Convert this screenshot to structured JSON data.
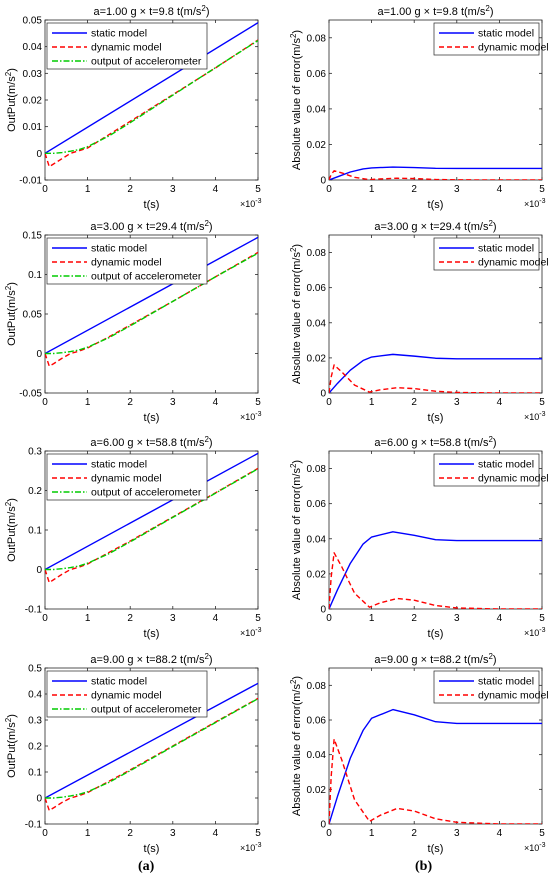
{
  "figure": {
    "panel_labels": [
      "(a)",
      "(b)"
    ]
  },
  "colors": {
    "static": "#0000ff",
    "dynamic": "#ff0000",
    "accel": "#00cc00"
  },
  "chart_data": [
    {
      "id": "a1",
      "type": "line",
      "title": {
        "main": "a=1.00 g × t=9.8 t(m/s",
        "sup": "2",
        "close": ")"
      },
      "xlabel": "t(s)",
      "x_exponent": "×10",
      "x_exponent_power": "-3",
      "ylabel": {
        "main": "OutPut(m/s",
        "sup": "2",
        "close": ")"
      },
      "xlim": [
        0,
        5
      ],
      "ylim": [
        -0.01,
        0.05
      ],
      "xticks": [
        "0",
        "1",
        "2",
        "3",
        "4",
        "5"
      ],
      "yticks": [
        "-0.01",
        "0",
        "0.01",
        "0.02",
        "0.03",
        "0.04",
        "0.05"
      ],
      "legend": {
        "placement": "top-left",
        "entries": [
          "static model",
          "dynamic model",
          "output of accelerometer"
        ]
      },
      "series": [
        {
          "name": "static model",
          "style": "solid",
          "color_key": "static",
          "x": [
            0,
            5
          ],
          "y": [
            0,
            0.049
          ]
        },
        {
          "name": "dynamic model",
          "style": "dashed",
          "color_key": "dynamic",
          "x": [
            0,
            0.1,
            0.2,
            0.4,
            0.6,
            0.8,
            1.0,
            1.5,
            2,
            3,
            4,
            5
          ],
          "y": [
            0,
            -0.005,
            -0.004,
            -0.002,
            0,
            0.001,
            0.002,
            0.007,
            0.012,
            0.022,
            0.032,
            0.0425
          ]
        },
        {
          "name": "output of accelerometer",
          "style": "dashdot",
          "color_key": "accel",
          "x": [
            0,
            0.2,
            0.4,
            0.6,
            0.8,
            1.0,
            1.5,
            2,
            3,
            4,
            5
          ],
          "y": [
            0,
            0,
            0.0003,
            0.0008,
            0.0014,
            0.0025,
            0.0065,
            0.0115,
            0.0218,
            0.0321,
            0.0423
          ]
        }
      ]
    },
    {
      "id": "b1",
      "type": "line",
      "title": {
        "main": "a=1.00 g × t=9.8 t(m/s",
        "sup": "2",
        "close": ")"
      },
      "xlabel": "t(s)",
      "x_exponent": "×10",
      "x_exponent_power": "-3",
      "ylabel": {
        "main": "Absolute value of error(m/s",
        "sup": "2",
        "close": ")"
      },
      "xlim": [
        0,
        5
      ],
      "ylim": [
        0,
        0.09
      ],
      "xticks": [
        "0",
        "1",
        "2",
        "3",
        "4",
        "5"
      ],
      "yticks": [
        "0",
        "0.02",
        "0.04",
        "0.06",
        "0.08"
      ],
      "legend": {
        "placement": "top-right",
        "entries": [
          "static model",
          "dynamic model"
        ]
      },
      "series": [
        {
          "name": "static model",
          "style": "solid",
          "color_key": "static",
          "x": [
            0,
            0.2,
            0.5,
            0.8,
            1.0,
            1.5,
            2.0,
            2.5,
            3.0,
            4.0,
            5.0
          ],
          "y": [
            0,
            0.0018,
            0.0045,
            0.0062,
            0.0068,
            0.0073,
            0.007,
            0.0066,
            0.0065,
            0.0065,
            0.0065
          ]
        },
        {
          "name": "dynamic model",
          "style": "dashed",
          "color_key": "dynamic",
          "x": [
            0,
            0.05,
            0.12,
            0.3,
            0.6,
            0.95,
            1.2,
            1.6,
            2.0,
            2.5,
            3,
            4,
            5
          ],
          "y": [
            0,
            0.003,
            0.0052,
            0.004,
            0.0015,
            0.0002,
            0.0006,
            0.001,
            0.0008,
            0.0003,
            0.0001,
            0,
            0
          ]
        }
      ]
    },
    {
      "id": "a2",
      "type": "line",
      "title": {
        "main": "a=3.00 g × t=29.4 t(m/s",
        "sup": "2",
        "close": ")"
      },
      "xlabel": "t(s)",
      "x_exponent": "×10",
      "x_exponent_power": "-3",
      "ylabel": {
        "main": "OutPut(m/s",
        "sup": "2",
        "close": ")"
      },
      "xlim": [
        0,
        5
      ],
      "ylim": [
        -0.05,
        0.15
      ],
      "xticks": [
        "0",
        "1",
        "2",
        "3",
        "4",
        "5"
      ],
      "yticks": [
        "-0.05",
        "0",
        "0.05",
        "0.1",
        "0.15"
      ],
      "legend": {
        "placement": "top-left",
        "entries": [
          "static model",
          "dynamic model",
          "output of accelerometer"
        ]
      },
      "series": [
        {
          "name": "static model",
          "style": "solid",
          "color_key": "static",
          "x": [
            0,
            5
          ],
          "y": [
            0,
            0.147
          ]
        },
        {
          "name": "dynamic model",
          "style": "dashed",
          "color_key": "dynamic",
          "x": [
            0,
            0.1,
            0.2,
            0.4,
            0.6,
            0.8,
            1.0,
            1.5,
            2,
            3,
            4,
            5
          ],
          "y": [
            0,
            -0.016,
            -0.013,
            -0.006,
            0,
            0.003,
            0.007,
            0.021,
            0.036,
            0.066,
            0.097,
            0.128
          ]
        },
        {
          "name": "output of accelerometer",
          "style": "dashdot",
          "color_key": "accel",
          "x": [
            0,
            0.2,
            0.4,
            0.6,
            0.8,
            1.0,
            1.5,
            2,
            3,
            4,
            5
          ],
          "y": [
            0,
            0,
            0.001,
            0.0025,
            0.0045,
            0.008,
            0.02,
            0.035,
            0.066,
            0.097,
            0.127
          ]
        }
      ]
    },
    {
      "id": "b2",
      "type": "line",
      "title": {
        "main": "a=3.00 g × t=29.4 t(m/s",
        "sup": "2",
        "close": ")"
      },
      "xlabel": "t(s)",
      "x_exponent": "×10",
      "x_exponent_power": "-3",
      "ylabel": {
        "main": "Absolute value of error(m/s",
        "sup": "2",
        "close": ")"
      },
      "xlim": [
        0,
        5
      ],
      "ylim": [
        0,
        0.09
      ],
      "xticks": [
        "0",
        "1",
        "2",
        "3",
        "4",
        "5"
      ],
      "yticks": [
        "0",
        "0.02",
        "0.04",
        "0.06",
        "0.08"
      ],
      "legend": {
        "placement": "top-right",
        "entries": [
          "static model",
          "dynamic model"
        ]
      },
      "series": [
        {
          "name": "static model",
          "style": "solid",
          "color_key": "static",
          "x": [
            0,
            0.2,
            0.5,
            0.8,
            1.0,
            1.5,
            2.0,
            2.5,
            3.0,
            4.0,
            5.0
          ],
          "y": [
            0,
            0.0055,
            0.013,
            0.0185,
            0.0205,
            0.022,
            0.021,
            0.0198,
            0.0195,
            0.0195,
            0.0195
          ]
        },
        {
          "name": "dynamic model",
          "style": "dashed",
          "color_key": "dynamic",
          "x": [
            0,
            0.05,
            0.12,
            0.3,
            0.6,
            0.95,
            1.2,
            1.6,
            2.0,
            2.5,
            3,
            4,
            5
          ],
          "y": [
            0,
            0.009,
            0.016,
            0.012,
            0.0045,
            0.0005,
            0.0018,
            0.003,
            0.0025,
            0.001,
            0.0003,
            0,
            0
          ]
        }
      ]
    },
    {
      "id": "a3",
      "type": "line",
      "title": {
        "main": "a=6.00 g × t=58.8 t(m/s",
        "sup": "2",
        "close": ")"
      },
      "xlabel": "t(s)",
      "x_exponent": "×10",
      "x_exponent_power": "-3",
      "ylabel": {
        "main": "OutPut(m/s",
        "sup": "2",
        "close": ")"
      },
      "xlim": [
        0,
        5
      ],
      "ylim": [
        -0.1,
        0.3
      ],
      "xticks": [
        "0",
        "1",
        "2",
        "3",
        "4",
        "5"
      ],
      "yticks": [
        "-0.1",
        "0",
        "0.1",
        "0.2",
        "0.3"
      ],
      "legend": {
        "placement": "top-left",
        "entries": [
          "static model",
          "dynamic model",
          "output of accelerometer"
        ]
      },
      "series": [
        {
          "name": "static model",
          "style": "solid",
          "color_key": "static",
          "x": [
            0,
            5
          ],
          "y": [
            0,
            0.294
          ]
        },
        {
          "name": "dynamic model",
          "style": "dashed",
          "color_key": "dynamic",
          "x": [
            0,
            0.1,
            0.2,
            0.4,
            0.6,
            0.8,
            1.0,
            1.5,
            2,
            3,
            4,
            5
          ],
          "y": [
            0,
            -0.033,
            -0.026,
            -0.012,
            0,
            0.006,
            0.014,
            0.043,
            0.072,
            0.133,
            0.194,
            0.256
          ]
        },
        {
          "name": "output of accelerometer",
          "style": "dashdot",
          "color_key": "accel",
          "x": [
            0,
            0.2,
            0.4,
            0.6,
            0.8,
            1.0,
            1.5,
            2,
            3,
            4,
            5
          ],
          "y": [
            0,
            0,
            0.002,
            0.005,
            0.009,
            0.016,
            0.04,
            0.07,
            0.132,
            0.193,
            0.255
          ]
        }
      ]
    },
    {
      "id": "b3",
      "type": "line",
      "title": {
        "main": "a=6.00 g × t=58.8 t(m/s",
        "sup": "2",
        "close": ")"
      },
      "xlabel": "t(s)",
      "x_exponent": "×10",
      "x_exponent_power": "-3",
      "ylabel": {
        "main": "Absolute value of error(m/s",
        "sup": "2",
        "close": ")"
      },
      "xlim": [
        0,
        5
      ],
      "ylim": [
        0,
        0.09
      ],
      "xticks": [
        "0",
        "1",
        "2",
        "3",
        "4",
        "5"
      ],
      "yticks": [
        "0",
        "0.02",
        "0.04",
        "0.06",
        "0.08"
      ],
      "legend": {
        "placement": "top-right",
        "entries": [
          "static model",
          "dynamic model"
        ]
      },
      "series": [
        {
          "name": "static model",
          "style": "solid",
          "color_key": "static",
          "x": [
            0,
            0.2,
            0.5,
            0.8,
            1.0,
            1.5,
            2.0,
            2.5,
            3.0,
            4.0,
            5.0
          ],
          "y": [
            0,
            0.011,
            0.026,
            0.037,
            0.041,
            0.044,
            0.042,
            0.0395,
            0.039,
            0.039,
            0.039
          ]
        },
        {
          "name": "dynamic model",
          "style": "dashed",
          "color_key": "dynamic",
          "x": [
            0,
            0.05,
            0.12,
            0.3,
            0.6,
            0.95,
            1.2,
            1.6,
            2.0,
            2.5,
            3,
            4,
            5
          ],
          "y": [
            0,
            0.018,
            0.032,
            0.024,
            0.009,
            0.001,
            0.0035,
            0.006,
            0.005,
            0.002,
            0.0006,
            0,
            0
          ]
        }
      ]
    },
    {
      "id": "a4",
      "type": "line",
      "title": {
        "main": "a=9.00 g × t=88.2 t(m/s",
        "sup": "2",
        "close": ")"
      },
      "xlabel": "t(s)",
      "x_exponent": "×10",
      "x_exponent_power": "-3",
      "ylabel": {
        "main": "OutPut(m/s",
        "sup": "2",
        "close": ")"
      },
      "xlim": [
        0,
        5
      ],
      "ylim": [
        -0.1,
        0.5
      ],
      "xticks": [
        "0",
        "1",
        "2",
        "3",
        "4",
        "5"
      ],
      "yticks": [
        "-0.1",
        "0",
        "0.1",
        "0.2",
        "0.3",
        "0.4",
        "0.5"
      ],
      "legend": {
        "placement": "top-left",
        "entries": [
          "static model",
          "dynamic model",
          "output of accelerometer"
        ]
      },
      "series": [
        {
          "name": "static model",
          "style": "solid",
          "color_key": "static",
          "x": [
            0,
            5
          ],
          "y": [
            0,
            0.441
          ]
        },
        {
          "name": "dynamic model",
          "style": "dashed",
          "color_key": "dynamic",
          "x": [
            0,
            0.1,
            0.2,
            0.4,
            0.6,
            0.8,
            1.0,
            1.5,
            2,
            3,
            4,
            5
          ],
          "y": [
            0,
            -0.048,
            -0.038,
            -0.017,
            0,
            0.009,
            0.021,
            0.064,
            0.108,
            0.2,
            0.292,
            0.383
          ]
        },
        {
          "name": "output of accelerometer",
          "style": "dashdot",
          "color_key": "accel",
          "x": [
            0,
            0.2,
            0.4,
            0.6,
            0.8,
            1.0,
            1.5,
            2,
            3,
            4,
            5
          ],
          "y": [
            0,
            0,
            0.003,
            0.008,
            0.014,
            0.024,
            0.06,
            0.105,
            0.198,
            0.29,
            0.382
          ]
        }
      ]
    },
    {
      "id": "b4",
      "type": "line",
      "title": {
        "main": "a=9.00 g × t=88.2 t(m/s",
        "sup": "2",
        "close": ")"
      },
      "xlabel": "t(s)",
      "x_exponent": "×10",
      "x_exponent_power": "-3",
      "ylabel": {
        "main": "Absolute value of error(m/s",
        "sup": "2",
        "close": ")"
      },
      "xlim": [
        0,
        5
      ],
      "ylim": [
        0,
        0.09
      ],
      "xticks": [
        "0",
        "1",
        "2",
        "3",
        "4",
        "5"
      ],
      "yticks": [
        "0",
        "0.02",
        "0.04",
        "0.06",
        "0.08"
      ],
      "legend": {
        "placement": "top-right",
        "entries": [
          "static model",
          "dynamic model"
        ]
      },
      "series": [
        {
          "name": "static model",
          "style": "solid",
          "color_key": "static",
          "x": [
            0,
            0.2,
            0.5,
            0.8,
            1.0,
            1.5,
            2.0,
            2.5,
            3.0,
            4.0,
            5.0
          ],
          "y": [
            0,
            0.016,
            0.038,
            0.054,
            0.061,
            0.066,
            0.063,
            0.059,
            0.058,
            0.058,
            0.058
          ]
        },
        {
          "name": "dynamic model",
          "style": "dashed",
          "color_key": "dynamic",
          "x": [
            0,
            0.05,
            0.12,
            0.3,
            0.6,
            0.95,
            1.2,
            1.6,
            2.0,
            2.5,
            3,
            4,
            5
          ],
          "y": [
            0,
            0.027,
            0.049,
            0.037,
            0.014,
            0.0015,
            0.005,
            0.009,
            0.0075,
            0.003,
            0.001,
            0,
            0
          ]
        }
      ]
    }
  ]
}
